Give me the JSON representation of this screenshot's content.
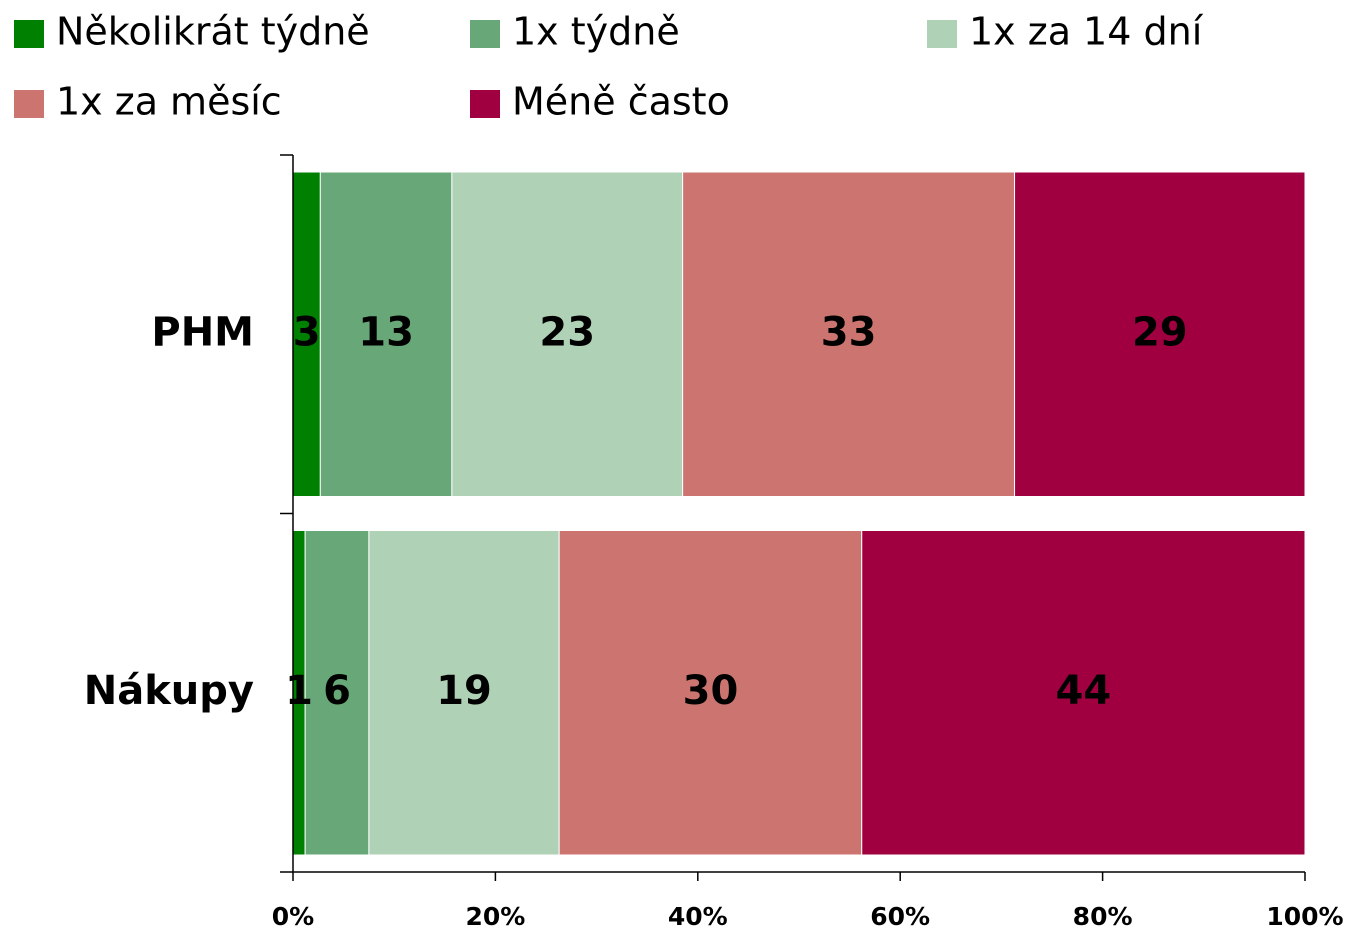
{
  "chart_data": {
    "type": "stacked-bar-horizontal",
    "categories": [
      "PHM",
      "Nákupy"
    ],
    "series": [
      {
        "name": "Několikrát týdně",
        "color": "#008000",
        "values": [
          2.7,
          1.2
        ],
        "value_labels": [
          "3",
          "1"
        ]
      },
      {
        "name": "1x týdně",
        "color": "#68a878",
        "values": [
          13.0,
          6.3
        ],
        "value_labels": [
          "13",
          "6"
        ]
      },
      {
        "name": "1x za 14 dní",
        "color": "#afd1b5",
        "values": [
          22.8,
          18.8
        ],
        "value_labels": [
          "23",
          "19"
        ]
      },
      {
        "name": "1x za měsíc",
        "color": "#cc7570",
        "values": [
          32.8,
          29.9
        ],
        "value_labels": [
          "33",
          "30"
        ]
      },
      {
        "name": "Méně často",
        "color": "#a00040",
        "values": [
          28.7,
          43.8
        ],
        "value_labels": [
          "29",
          "44"
        ]
      }
    ],
    "xlim": [
      0,
      100
    ],
    "xticks": [
      {
        "value": 0,
        "label": "0%"
      },
      {
        "value": 20,
        "label": "20%"
      },
      {
        "value": 40,
        "label": "40%"
      },
      {
        "value": 60,
        "label": "60%"
      },
      {
        "value": 80,
        "label": "80%"
      },
      {
        "value": 100,
        "label": "100%"
      }
    ],
    "grid": false,
    "legend": "top"
  }
}
